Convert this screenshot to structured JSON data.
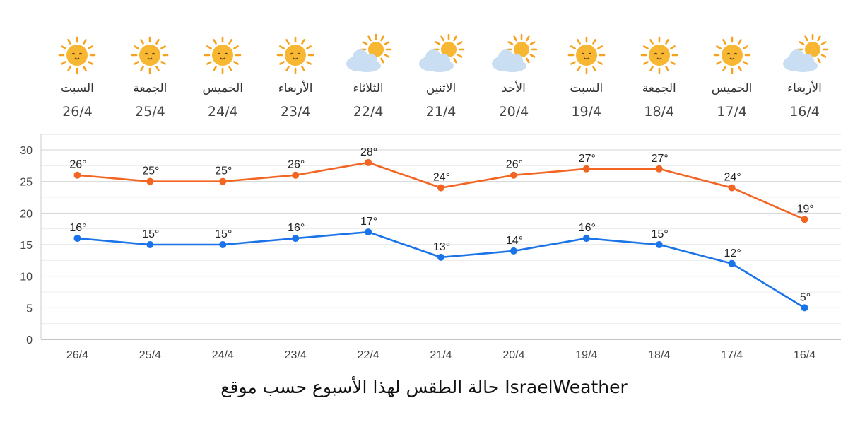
{
  "forecast": [
    {
      "day": "السبت",
      "date": "26/4",
      "icon": "sun-icon"
    },
    {
      "day": "الجمعة",
      "date": "25/4",
      "icon": "sun-icon"
    },
    {
      "day": "الخميس",
      "date": "24/4",
      "icon": "sun-icon"
    },
    {
      "day": "الأربعاء",
      "date": "23/4",
      "icon": "sun-icon"
    },
    {
      "day": "الثلاثاء",
      "date": "22/4",
      "icon": "partly-cloudy-icon"
    },
    {
      "day": "الاثنين",
      "date": "21/4",
      "icon": "partly-cloudy-icon"
    },
    {
      "day": "الأحد",
      "date": "20/4",
      "icon": "partly-cloudy-icon"
    },
    {
      "day": "السبت",
      "date": "19/4",
      "icon": "sun-icon"
    },
    {
      "day": "الجمعة",
      "date": "18/4",
      "icon": "sun-icon"
    },
    {
      "day": "الخميس",
      "date": "17/4",
      "icon": "sun-icon"
    },
    {
      "day": "الأربعاء",
      "date": "16/4",
      "icon": "partly-cloudy-icon"
    }
  ],
  "chart_data": {
    "type": "line",
    "categories": [
      "26/4",
      "25/4",
      "24/4",
      "23/4",
      "22/4",
      "21/4",
      "20/4",
      "19/4",
      "18/4",
      "17/4",
      "16/4"
    ],
    "series": [
      {
        "values": [
          26,
          25,
          25,
          26,
          28,
          24,
          26,
          27,
          27,
          24,
          19
        ],
        "color": "#f26522"
      },
      {
        "values": [
          16,
          15,
          15,
          16,
          17,
          13,
          14,
          16,
          15,
          12,
          5
        ],
        "color": "#1a73e8"
      }
    ],
    "value_suffix": "°",
    "ylim": [
      0,
      30
    ],
    "yticks": [
      0,
      5,
      10,
      15,
      20,
      25,
      30
    ],
    "grid": true
  },
  "caption": "حالة الطقس لهذا الأسبوع حسب موقع IsraelWeather",
  "colors": {
    "sun": "#f7b733",
    "sun_rays": "#f6a21e",
    "cloud": "#c9def2",
    "sun_face": "#5a3a10"
  }
}
